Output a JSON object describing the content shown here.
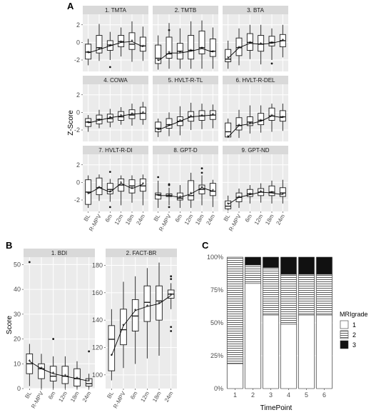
{
  "panel_labels": {
    "a": "A",
    "b": "B",
    "c": "C"
  },
  "panel_a": {
    "ylabel": "Z-Score"
  },
  "panel_b": {
    "ylabel": "Score"
  },
  "panel_c": {
    "xlabel": "TimePoint",
    "legend_title": "MRIgrade",
    "legend": [
      "1",
      "2",
      "3"
    ]
  },
  "chart_data": [
    {
      "type": "box",
      "panel": "A",
      "ylabel": "Z-Score",
      "categories": [
        "BL",
        "R-MPV",
        "6m",
        "12m",
        "18m",
        "24m"
      ],
      "y_ticks": [
        -2,
        0,
        2
      ],
      "ylim": [
        -3.3,
        3.2
      ],
      "facets": [
        {
          "title": "1. TMTA",
          "boxes": [
            {
              "lo": -2.6,
              "q1": -1.9,
              "med": -1.1,
              "q3": -0.2,
              "hi": 0.4,
              "mean": -1.2
            },
            {
              "lo": -2.1,
              "q1": -1.2,
              "med": -0.6,
              "q3": 0.8,
              "hi": 2.1,
              "mean": -0.8
            },
            {
              "lo": -2.0,
              "q1": -0.9,
              "med": -0.3,
              "q3": 0.2,
              "hi": 1.2,
              "mean": -0.4,
              "out": [
                -2.8
              ]
            },
            {
              "lo": -1.6,
              "q1": -0.5,
              "med": 0.1,
              "q3": 0.8,
              "hi": 1.7,
              "mean": 0.0
            },
            {
              "lo": -2.2,
              "q1": -0.8,
              "med": -0.2,
              "q3": 1.1,
              "hi": 2.4,
              "mean": 0.1
            },
            {
              "lo": -2.1,
              "q1": -1.0,
              "med": -0.4,
              "q3": 0.6,
              "hi": 1.8,
              "mean": -0.5
            }
          ]
        },
        {
          "title": "2. TMTB",
          "boxes": [
            {
              "lo": -3.1,
              "q1": -2.4,
              "med": -1.8,
              "q3": -0.3,
              "hi": 0.8,
              "mean": -2.1
            },
            {
              "lo": -3.0,
              "q1": -1.8,
              "med": -1.3,
              "q3": 0.6,
              "hi": 2.2,
              "mean": -1.2,
              "out": [
                1.4
              ]
            },
            {
              "lo": -3.0,
              "q1": -1.9,
              "med": -1.0,
              "q3": -0.1,
              "hi": 1.6,
              "mean": -1.2
            },
            {
              "lo": -3.0,
              "q1": -1.9,
              "med": -0.9,
              "q3": 0.8,
              "hi": 2.4,
              "mean": -1.0
            },
            {
              "lo": -3.0,
              "q1": -1.3,
              "med": -0.6,
              "q3": 1.3,
              "hi": 2.5,
              "mean": -0.7
            },
            {
              "lo": -3.0,
              "q1": -1.6,
              "med": -1.0,
              "q3": 0.4,
              "hi": 1.7,
              "mean": -1.1
            }
          ]
        },
        {
          "title": "3. BTA",
          "boxes": [
            {
              "lo": -3.0,
              "q1": -2.2,
              "med": -1.9,
              "q3": -0.8,
              "hi": 0.2,
              "mean": -1.8
            },
            {
              "lo": -2.6,
              "q1": -1.5,
              "med": -0.6,
              "q3": 0.5,
              "hi": 1.6,
              "mean": -0.6
            },
            {
              "lo": -1.9,
              "q1": -0.9,
              "med": 0.0,
              "q3": 1.0,
              "hi": 2.0,
              "mean": -0.1
            },
            {
              "lo": -2.5,
              "q1": -1.0,
              "med": -0.2,
              "q3": 0.8,
              "hi": 2.0,
              "mean": -0.2
            },
            {
              "lo": -2.0,
              "q1": -0.4,
              "med": 0.0,
              "q3": 0.7,
              "hi": 1.6,
              "mean": -0.1,
              "out": [
                -2.4
              ]
            },
            {
              "lo": -1.7,
              "q1": -0.5,
              "med": 0.2,
              "q3": 0.9,
              "hi": 2.0,
              "mean": 0.2
            }
          ]
        },
        {
          "title": "4. COWA",
          "boxes": [
            {
              "lo": -2.2,
              "q1": -1.6,
              "med": -1.1,
              "q3": -0.7,
              "hi": -0.3,
              "mean": -1.2
            },
            {
              "lo": -1.8,
              "q1": -1.3,
              "med": -0.8,
              "q3": -0.3,
              "hi": 0.3,
              "mean": -0.9
            },
            {
              "lo": -1.7,
              "q1": -1.1,
              "med": -0.7,
              "q3": -0.2,
              "hi": 0.4,
              "mean": -0.6
            },
            {
              "lo": -1.4,
              "q1": -0.9,
              "med": -0.5,
              "q3": 0.1,
              "hi": 0.6,
              "mean": -0.4
            },
            {
              "lo": -1.5,
              "q1": -0.7,
              "med": -0.3,
              "q3": 0.3,
              "hi": 1.0,
              "mean": -0.2
            },
            {
              "lo": -1.4,
              "q1": -0.8,
              "med": -0.1,
              "q3": 0.6,
              "hi": 1.2,
              "mean": -0.1
            }
          ]
        },
        {
          "title": "5. HVLT-R-TL",
          "boxes": [
            {
              "lo": -2.8,
              "q1": -2.2,
              "med": -1.8,
              "q3": -1.1,
              "hi": -0.7,
              "mean": -2.0
            },
            {
              "lo": -2.7,
              "q1": -1.8,
              "med": -1.4,
              "q3": -0.7,
              "hi": 0.0,
              "mean": -1.5
            },
            {
              "lo": -2.6,
              "q1": -1.5,
              "med": -1.0,
              "q3": -0.5,
              "hi": 0.7,
              "mean": -1.0
            },
            {
              "lo": -2.0,
              "q1": -1.0,
              "med": -0.5,
              "q3": 0.1,
              "hi": 1.1,
              "mean": -0.5
            },
            {
              "lo": -1.9,
              "q1": -0.9,
              "med": -0.4,
              "q3": 0.2,
              "hi": 1.0,
              "mean": -0.4
            },
            {
              "lo": -1.8,
              "q1": -0.8,
              "med": -0.3,
              "q3": 0.2,
              "hi": 0.9,
              "mean": -0.3
            }
          ]
        },
        {
          "title": "6. HVLT-R-DEL",
          "boxes": [
            {
              "lo": -2.9,
              "q1": -2.8,
              "med": -2.2,
              "q3": -1.2,
              "hi": -0.7,
              "mean": -2.8
            },
            {
              "lo": -2.9,
              "q1": -2.0,
              "med": -1.5,
              "q3": -0.6,
              "hi": 0.3,
              "mean": -1.5
            },
            {
              "lo": -2.4,
              "q1": -1.5,
              "med": -1.1,
              "q3": -0.5,
              "hi": 0.8,
              "mean": -1.3
            },
            {
              "lo": -2.3,
              "q1": -1.4,
              "med": -0.9,
              "q3": -0.1,
              "hi": 0.8,
              "mean": -1.0
            },
            {
              "lo": -2.2,
              "q1": -0.9,
              "med": -0.4,
              "q3": 0.5,
              "hi": 1.0,
              "mean": -0.4
            },
            {
              "lo": -2.1,
              "q1": -1.0,
              "med": -0.5,
              "q3": 0.2,
              "hi": 1.0,
              "mean": -0.6
            }
          ]
        },
        {
          "title": "7. HVLT-R-DI",
          "boxes": [
            {
              "lo": -2.9,
              "q1": -2.5,
              "med": -1.1,
              "q3": 0.3,
              "hi": 0.8,
              "mean": -1.3
            },
            {
              "lo": -2.1,
              "q1": -1.4,
              "med": -0.6,
              "q3": 0.5,
              "hi": 0.9,
              "mean": -0.6
            },
            {
              "lo": -2.2,
              "q1": -1.3,
              "med": -0.8,
              "q3": -0.1,
              "hi": 0.4,
              "mean": -1.1,
              "out": [
                1.2,
                -2.8
              ]
            },
            {
              "lo": -2.6,
              "q1": -1.0,
              "med": -0.3,
              "q3": 0.4,
              "hi": 0.8,
              "mean": -0.1
            },
            {
              "lo": -2.3,
              "q1": -1.2,
              "med": -0.4,
              "q3": 0.3,
              "hi": 0.8,
              "mean": -0.7
            },
            {
              "lo": -2.6,
              "q1": -1.0,
              "med": -0.4,
              "q3": 0.4,
              "hi": 0.9,
              "mean": -0.2
            }
          ]
        },
        {
          "title": "8. GPT-D",
          "boxes": [
            {
              "lo": -2.9,
              "q1": -1.9,
              "med": -1.4,
              "q3": -1.2,
              "hi": 0.2,
              "mean": -1.5,
              "out": [
                0.6
              ]
            },
            {
              "lo": -2.6,
              "q1": -1.6,
              "med": -1.5,
              "q3": -1.3,
              "hi": -0.6,
              "mean": -1.5,
              "out": [
                -0.2,
                -0.3,
                -2.8
              ]
            },
            {
              "lo": -2.9,
              "q1": -2.0,
              "med": -1.8,
              "q3": -1.2,
              "hi": -0.3,
              "mean": -1.7
            },
            {
              "lo": -2.9,
              "q1": -2.0,
              "med": -1.5,
              "q3": 0.2,
              "hi": 1.1,
              "mean": -1.3
            },
            {
              "lo": -2.6,
              "q1": -1.3,
              "med": -0.8,
              "q3": -0.3,
              "hi": 0.8,
              "mean": -0.6,
              "out": [
                1.6,
                1.1
              ]
            },
            {
              "lo": -2.8,
              "q1": -1.5,
              "med": -1.0,
              "q3": -0.1,
              "hi": 0.3,
              "mean": -1.0
            }
          ]
        },
        {
          "title": "9. GPT-ND",
          "boxes": [
            {
              "lo": -3.2,
              "q1": -3.0,
              "med": -2.7,
              "q3": -2.1,
              "hi": -1.5,
              "mean": -2.5
            },
            {
              "lo": -2.9,
              "q1": -2.2,
              "med": -1.7,
              "q3": -1.2,
              "hi": -0.7,
              "mean": -1.7
            },
            {
              "lo": -2.4,
              "q1": -1.6,
              "med": -1.3,
              "q3": -0.8,
              "hi": -0.3,
              "mean": -1.4
            },
            {
              "lo": -2.3,
              "q1": -1.5,
              "med": -1.1,
              "q3": -0.7,
              "hi": -0.1,
              "mean": -1.1
            },
            {
              "lo": -2.4,
              "q1": -1.5,
              "med": -1.1,
              "q3": -0.4,
              "hi": 0.2,
              "mean": -1.2
            },
            {
              "lo": -2.4,
              "q1": -1.6,
              "med": -1.2,
              "q3": -0.6,
              "hi": 0.3,
              "mean": -1.4
            }
          ]
        }
      ]
    },
    {
      "type": "box",
      "panel": "B",
      "ylabel": "Score",
      "categories": [
        "BL",
        "R-MPV",
        "6m",
        "12m",
        "18m",
        "24m"
      ],
      "facets": [
        {
          "title": "1. BDI",
          "y_ticks": [
            0,
            10,
            20,
            30,
            40,
            50
          ],
          "ylim": [
            0,
            53
          ],
          "boxes": [
            {
              "lo": 1,
              "q1": 6,
              "med": 10,
              "q3": 14,
              "hi": 18,
              "mean": 11,
              "out": [
                51
              ]
            },
            {
              "lo": 0,
              "q1": 4,
              "med": 8,
              "q3": 10,
              "hi": 14,
              "mean": 8
            },
            {
              "lo": 0,
              "q1": 3,
              "med": 5,
              "q3": 9,
              "hi": 13,
              "mean": 6,
              "out": [
                20
              ]
            },
            {
              "lo": 0,
              "q1": 2,
              "med": 5,
              "q3": 9,
              "hi": 13,
              "mean": 5
            },
            {
              "lo": 0,
              "q1": 1,
              "med": 4,
              "q3": 8,
              "hi": 11,
              "mean": 4
            },
            {
              "lo": 0,
              "q1": 1,
              "med": 2,
              "q3": 4,
              "hi": 6,
              "mean": 3,
              "out": [
                15
              ]
            }
          ]
        },
        {
          "title": "2. FACT-BR",
          "y_ticks": [
            100,
            120,
            140,
            160,
            180
          ],
          "ylim": [
            90,
            186
          ],
          "boxes": [
            {
              "lo": 96,
              "q1": 103,
              "med": 126,
              "q3": 136,
              "hi": 148,
              "mean": 114
            },
            {
              "lo": 105,
              "q1": 122,
              "med": 133,
              "q3": 148,
              "hi": 168,
              "mean": 136
            },
            {
              "lo": 108,
              "q1": 132,
              "med": 143,
              "q3": 155,
              "hi": 172,
              "mean": 147
            },
            {
              "lo": 112,
              "q1": 139,
              "med": 153,
              "q3": 165,
              "hi": 178,
              "mean": 150
            },
            {
              "lo": 114,
              "q1": 140,
              "med": 154,
              "q3": 165,
              "hi": 182,
              "mean": 152
            },
            {
              "lo": 148,
              "q1": 156,
              "med": 159,
              "q3": 162,
              "hi": 167,
              "mean": 158,
              "out": [
                172,
                170,
                135,
                132
              ]
            }
          ]
        }
      ]
    },
    {
      "type": "bar",
      "panel": "C",
      "stacked": true,
      "percent": true,
      "xlabel": "TimePoint",
      "categories": [
        "1",
        "2",
        "3",
        "4",
        "5",
        "6"
      ],
      "y_ticks": [
        "0%",
        "25%",
        "50%",
        "75%",
        "100%"
      ],
      "legend_title": "MRIgrade",
      "legend_position": "right",
      "series": [
        {
          "name": "1",
          "color": "#ffffff",
          "values": [
            0.19,
            0.8,
            0.56,
            0.49,
            0.56,
            0.56
          ]
        },
        {
          "name": "2",
          "color": "hatched",
          "values": [
            0.81,
            0.14,
            0.36,
            0.38,
            0.31,
            0.31
          ]
        },
        {
          "name": "3",
          "color": "#111111",
          "values": [
            0.0,
            0.06,
            0.08,
            0.13,
            0.13,
            0.13
          ]
        }
      ]
    }
  ]
}
